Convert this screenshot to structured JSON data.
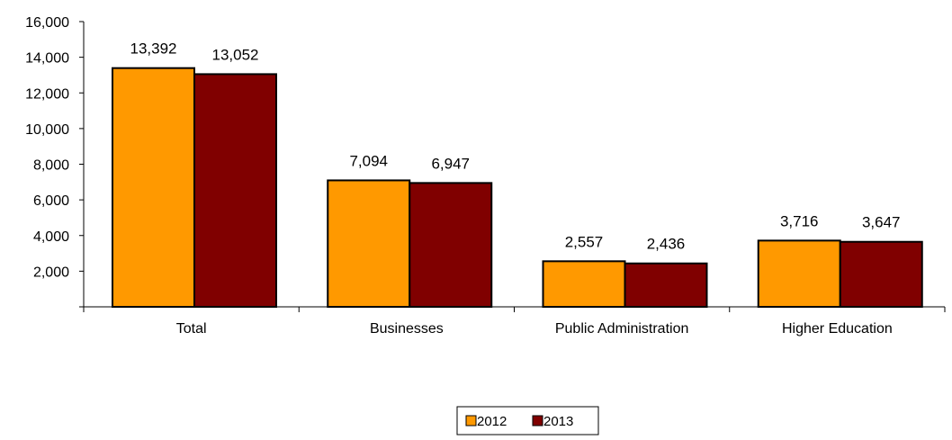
{
  "chart_data": {
    "type": "bar",
    "categories": [
      "Total",
      "Businesses",
      "Public Administration",
      "Higher Education"
    ],
    "series": [
      {
        "name": "2012",
        "values": [
          13392,
          7094,
          2557,
          3716
        ],
        "color": "#FF9900"
      },
      {
        "name": "2013",
        "values": [
          13052,
          6947,
          2436,
          3647
        ],
        "color": "#800000"
      }
    ],
    "value_labels": [
      [
        "13,392",
        "7,094",
        "2,557",
        "3,716"
      ],
      [
        "13,052",
        "6,947",
        "2,436",
        "3,647"
      ]
    ],
    "yticks": [
      {
        "value": 2000,
        "label": "2,000"
      },
      {
        "value": 4000,
        "label": "4,000"
      },
      {
        "value": 6000,
        "label": "6,000"
      },
      {
        "value": 8000,
        "label": "8,000"
      },
      {
        "value": 10000,
        "label": "10,000"
      },
      {
        "value": 12000,
        "label": "12,000"
      },
      {
        "value": 14000,
        "label": "14,000"
      },
      {
        "value": 16000,
        "label": "16,000"
      }
    ],
    "ylim": [
      0,
      16000
    ],
    "grid": false,
    "legend_position": "bottom-center",
    "title": "",
    "xlabel": "",
    "ylabel": ""
  }
}
